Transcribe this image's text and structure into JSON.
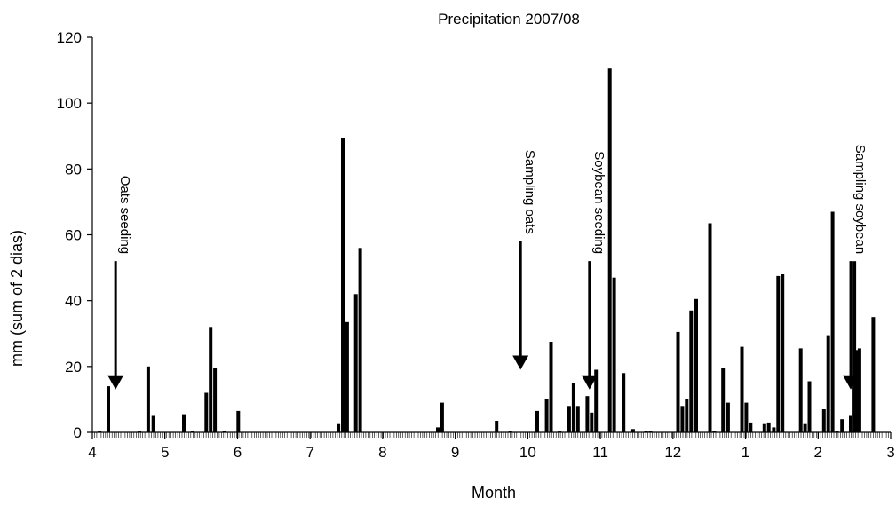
{
  "chart_data": {
    "type": "bar",
    "title": "Precipitation 2007/08",
    "xlabel": "Month",
    "ylabel": "mm (sum of 2 dias)",
    "ylim": [
      0,
      120
    ],
    "yticks": [
      0,
      20,
      40,
      60,
      80,
      100,
      120
    ],
    "xlim": [
      4,
      15
    ],
    "xtick_labels": [
      "4",
      "5",
      "6",
      "7",
      "8",
      "9",
      "10",
      "11",
      "12",
      "1",
      "2",
      "3"
    ],
    "grid": false,
    "legend": "none",
    "bar_color": "#000000",
    "values": [
      {
        "x": 4.1,
        "y": 0.5
      },
      {
        "x": 4.22,
        "y": 14
      },
      {
        "x": 4.65,
        "y": 0.5
      },
      {
        "x": 4.77,
        "y": 20
      },
      {
        "x": 4.84,
        "y": 5
      },
      {
        "x": 5.26,
        "y": 5.5
      },
      {
        "x": 5.38,
        "y": 0.5
      },
      {
        "x": 5.57,
        "y": 12
      },
      {
        "x": 5.63,
        "y": 32
      },
      {
        "x": 5.69,
        "y": 19.5
      },
      {
        "x": 5.82,
        "y": 0.5
      },
      {
        "x": 6.01,
        "y": 6.5
      },
      {
        "x": 7.39,
        "y": 2.5
      },
      {
        "x": 7.45,
        "y": 89.5
      },
      {
        "x": 7.51,
        "y": 33.5
      },
      {
        "x": 7.63,
        "y": 42
      },
      {
        "x": 7.69,
        "y": 56
      },
      {
        "x": 8.76,
        "y": 1.5
      },
      {
        "x": 8.82,
        "y": 9
      },
      {
        "x": 9.57,
        "y": 3.5
      },
      {
        "x": 9.76,
        "y": 0.5
      },
      {
        "x": 10.13,
        "y": 6.5
      },
      {
        "x": 10.26,
        "y": 10
      },
      {
        "x": 10.32,
        "y": 27.5
      },
      {
        "x": 10.44,
        "y": 0.5
      },
      {
        "x": 10.57,
        "y": 8
      },
      {
        "x": 10.63,
        "y": 15
      },
      {
        "x": 10.69,
        "y": 8
      },
      {
        "x": 10.82,
        "y": 11
      },
      {
        "x": 10.88,
        "y": 6
      },
      {
        "x": 10.94,
        "y": 19
      },
      {
        "x": 11.13,
        "y": 110.5
      },
      {
        "x": 11.19,
        "y": 47
      },
      {
        "x": 11.32,
        "y": 18
      },
      {
        "x": 11.45,
        "y": 1
      },
      {
        "x": 11.63,
        "y": 0.5
      },
      {
        "x": 11.69,
        "y": 0.5
      },
      {
        "x": 12.07,
        "y": 30.5
      },
      {
        "x": 12.13,
        "y": 8
      },
      {
        "x": 12.19,
        "y": 10
      },
      {
        "x": 12.25,
        "y": 37
      },
      {
        "x": 12.32,
        "y": 40.5
      },
      {
        "x": 12.51,
        "y": 63.5
      },
      {
        "x": 12.57,
        "y": 0.5
      },
      {
        "x": 12.69,
        "y": 19.5
      },
      {
        "x": 12.76,
        "y": 9
      },
      {
        "x": 12.95,
        "y": 26
      },
      {
        "x": 13.01,
        "y": 9
      },
      {
        "x": 13.07,
        "y": 3
      },
      {
        "x": 13.26,
        "y": 2.5
      },
      {
        "x": 13.32,
        "y": 3
      },
      {
        "x": 13.39,
        "y": 1.5
      },
      {
        "x": 13.45,
        "y": 47.5
      },
      {
        "x": 13.51,
        "y": 48
      },
      {
        "x": 13.76,
        "y": 25.5
      },
      {
        "x": 13.82,
        "y": 2.5
      },
      {
        "x": 13.88,
        "y": 15.5
      },
      {
        "x": 14.08,
        "y": 7
      },
      {
        "x": 14.14,
        "y": 29.5
      },
      {
        "x": 14.2,
        "y": 67
      },
      {
        "x": 14.26,
        "y": 0.5
      },
      {
        "x": 14.33,
        "y": 4
      },
      {
        "x": 14.45,
        "y": 5
      },
      {
        "x": 14.5,
        "y": 52
      },
      {
        "x": 14.53,
        "y": 25
      },
      {
        "x": 14.57,
        "y": 25.5
      },
      {
        "x": 14.76,
        "y": 35
      }
    ],
    "annotations": [
      {
        "text": "Oats seeding",
        "x": 4.32,
        "y_top": 52,
        "y_tip": 13
      },
      {
        "text": "Sampling oats",
        "x": 9.9,
        "y_top": 58,
        "y_tip": 19
      },
      {
        "text": "Soybean seeding",
        "x": 10.85,
        "y_top": 52,
        "y_tip": 13
      },
      {
        "text": "Sampling soybean",
        "x": 14.45,
        "y_top": 52,
        "y_tip": 13
      }
    ]
  }
}
